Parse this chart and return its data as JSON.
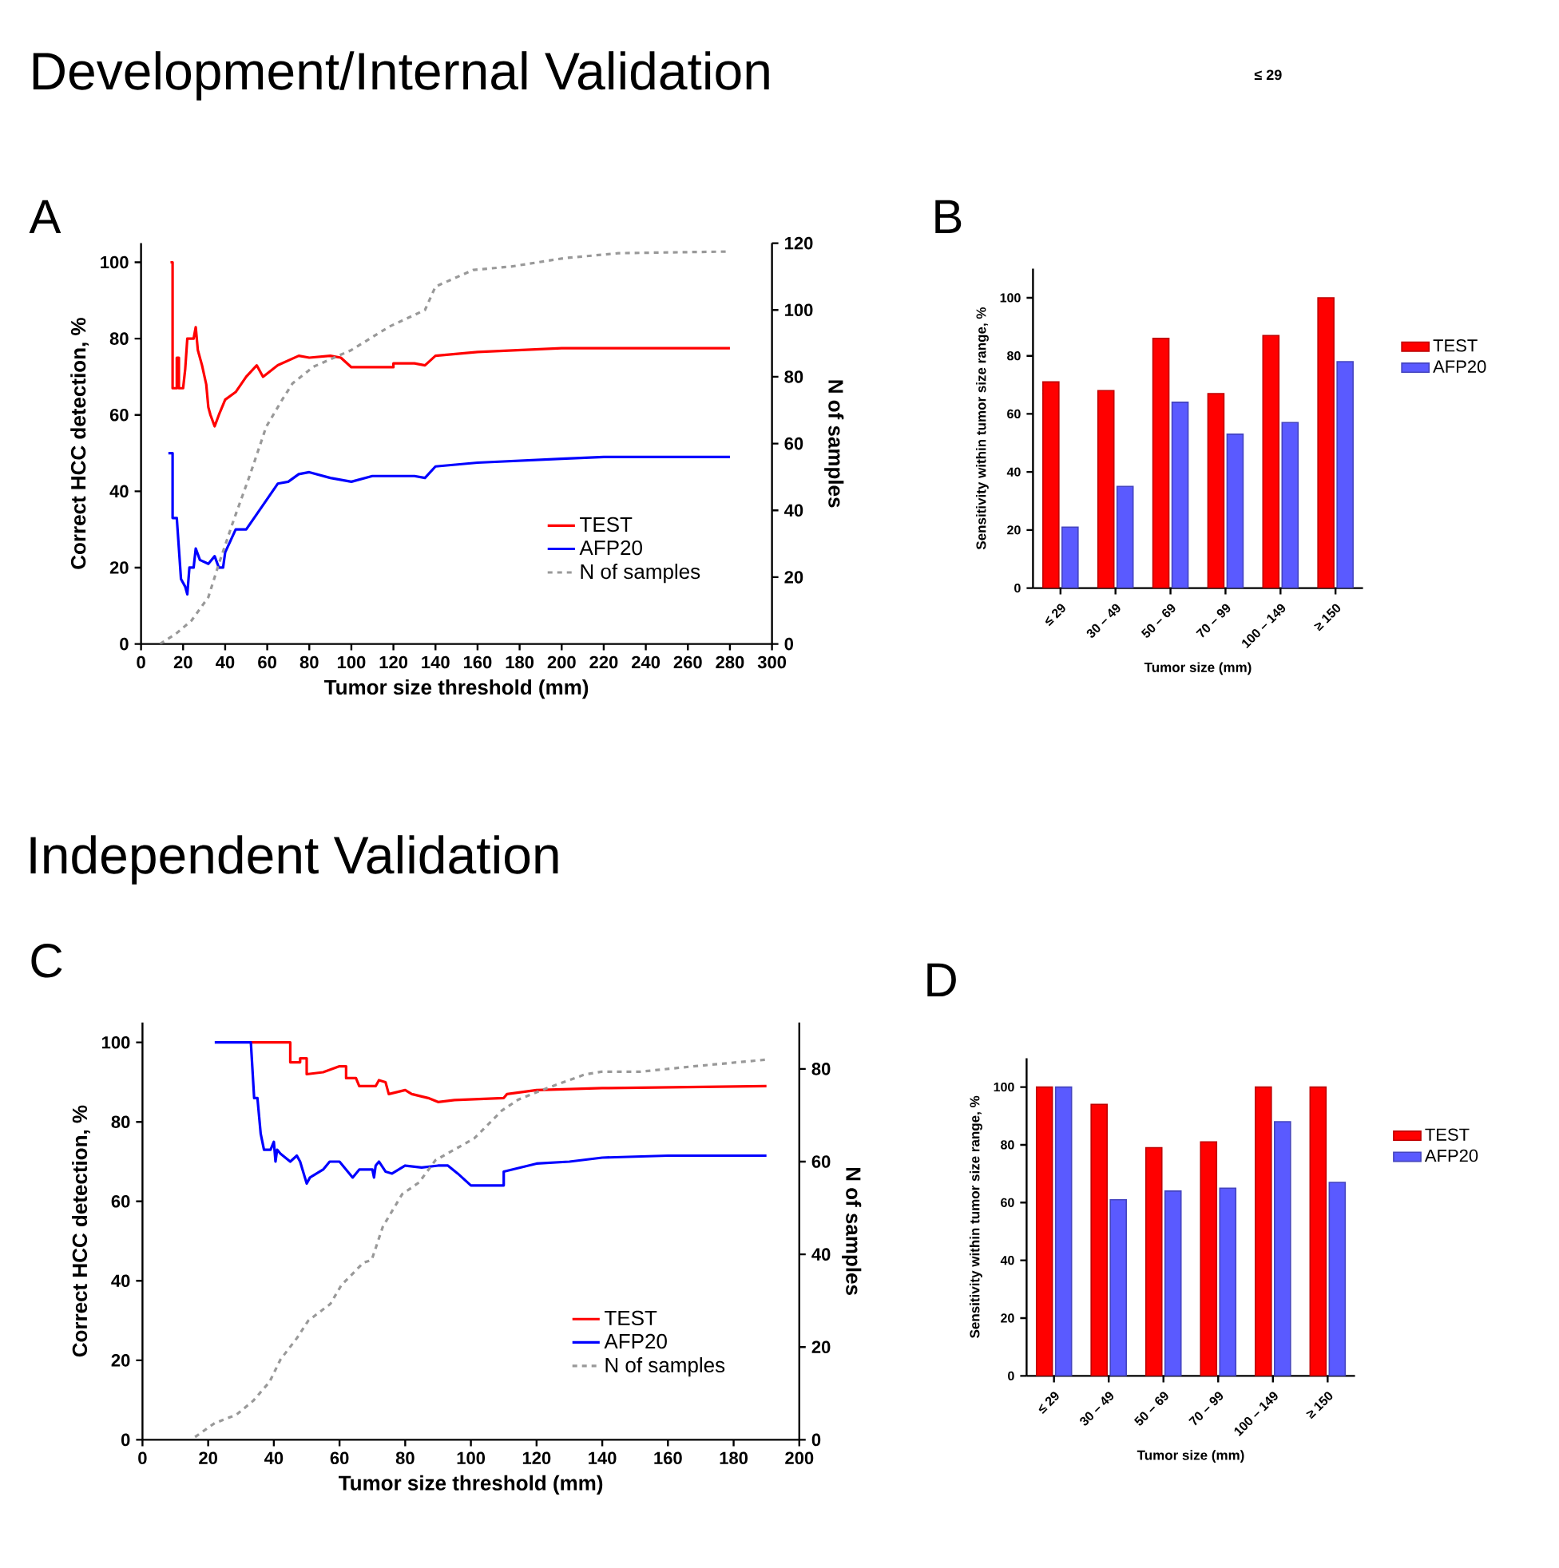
{
  "chart_data": [
    {
      "type": "line",
      "title": "Development/Internal Validation",
      "subtitle": "A",
      "xlabel": "Tumor size threshold (mm)",
      "ylabel": "Correct HCC detection, %",
      "y2label": "N of samples",
      "xlim": [
        0,
        300
      ],
      "xticks": [
        0,
        20,
        40,
        60,
        80,
        100,
        120,
        140,
        160,
        180,
        200,
        220,
        240,
        260,
        280,
        300
      ],
      "ylim": [
        0,
        105
      ],
      "yticks": [
        0,
        20,
        40,
        60,
        80,
        100
      ],
      "y2lim": [
        0,
        120
      ],
      "y2ticks": [
        0,
        20,
        40,
        60,
        80,
        100,
        120
      ],
      "legend": "bottom right",
      "series": [
        {
          "name": "TEST",
          "color": "#ff0000",
          "x": [
            14,
            15,
            15,
            17,
            17,
            18,
            18,
            20,
            21,
            22,
            25,
            26,
            27,
            29,
            31,
            32,
            33,
            35,
            37,
            40,
            45,
            50,
            55,
            58,
            65,
            75,
            80,
            90,
            95,
            100,
            120,
            120,
            130,
            135,
            140,
            160,
            200,
            280
          ],
          "values": [
            100,
            100,
            67,
            67,
            75,
            75,
            67,
            67,
            72,
            80,
            80,
            83,
            77,
            73,
            68,
            62,
            60,
            57,
            60,
            64,
            66,
            70,
            73,
            70,
            73,
            75.5,
            75,
            75.5,
            75,
            72.5,
            72.5,
            73.5,
            73.5,
            73,
            75.5,
            76.5,
            77.5,
            77.5
          ]
        },
        {
          "name": "AFP20",
          "color": "#0000ff",
          "x": [
            13,
            15,
            15,
            17,
            18,
            19,
            21,
            22,
            23,
            25,
            26,
            28,
            32,
            35,
            37,
            39,
            40,
            45,
            50,
            55,
            60,
            65,
            70,
            75,
            80,
            90,
            100,
            110,
            130,
            135,
            140,
            160,
            200,
            220,
            280
          ],
          "values": [
            50,
            50,
            33,
            33,
            25,
            17,
            15,
            13,
            20,
            20,
            25,
            22,
            21,
            23,
            20,
            20,
            24,
            30,
            30,
            34,
            38,
            42,
            42.5,
            44.5,
            45,
            43.5,
            42.5,
            44,
            44,
            43.5,
            46.5,
            47.5,
            48.5,
            49,
            49
          ]
        },
        {
          "name": "N of samples",
          "color": "#999999",
          "line_style": "dashed",
          "axis": "y2",
          "x": [
            9,
            16.5,
            24,
            32,
            37,
            44,
            52,
            59.5,
            67,
            72,
            82,
            100,
            118,
            135,
            140,
            158,
            176,
            201,
            227,
            278.5
          ],
          "values": [
            0,
            3,
            7,
            14,
            24,
            37,
            51,
            65,
            73,
            78,
            83,
            88,
            95,
            100,
            107,
            112,
            113,
            115.5,
            117,
            117.5
          ]
        }
      ]
    },
    {
      "type": "bar",
      "title": "B",
      "annotations": [
        "≤ 29"
      ],
      "xlabel": "Tumor size (mm)",
      "ylabel": "Sensitivity within tumor size range, %",
      "categories": [
        "≤ 29",
        "30 – 49",
        "50 – 69",
        "70 – 99",
        "100 – 149",
        "≥ 150"
      ],
      "ylim": [
        0,
        110
      ],
      "yticks": [
        0,
        20,
        40,
        60,
        80,
        100
      ],
      "legend": "right",
      "series": [
        {
          "name": "TEST",
          "color": "#ff0000",
          "values": [
            71,
            68,
            86,
            67,
            87,
            100
          ]
        },
        {
          "name": "AFP20",
          "color": "#5a5aff",
          "values": [
            21,
            35,
            64,
            53,
            57,
            78
          ]
        }
      ]
    },
    {
      "type": "line",
      "title": "Independent Validation",
      "subtitle": "C",
      "xlabel": "Tumor size threshold (mm)",
      "ylabel": "Correct HCC detection, %",
      "y2label": "N of samples",
      "xlim": [
        0,
        200
      ],
      "xticks": [
        0,
        20,
        40,
        60,
        80,
        100,
        120,
        140,
        160,
        180,
        200
      ],
      "ylim": [
        0,
        105
      ],
      "yticks": [
        0,
        20,
        40,
        60,
        80,
        100
      ],
      "y2lim": [
        0,
        90
      ],
      "y2ticks": [
        0,
        20,
        40,
        60,
        80
      ],
      "legend": "bottom right",
      "series": [
        {
          "name": "TEST",
          "color": "#ff0000",
          "x": [
            33,
            45,
            45,
            48,
            48,
            50,
            50,
            55,
            60,
            62,
            62,
            65,
            66,
            71,
            72,
            74,
            75,
            80,
            82,
            87,
            90,
            95,
            110,
            111,
            120,
            140,
            190
          ],
          "values": [
            100,
            100,
            95,
            95,
            96,
            96,
            92,
            92.5,
            94,
            94,
            91,
            91,
            89,
            89,
            90.5,
            90,
            87,
            88,
            87,
            86,
            85,
            85.5,
            86,
            87,
            88,
            88.5,
            89
          ]
        },
        {
          "name": "AFP20",
          "color": "#0000ff",
          "x": [
            22,
            33,
            34,
            35,
            36,
            37,
            39,
            40,
            40.5,
            41,
            42,
            45,
            47,
            48,
            50,
            51,
            55,
            57,
            60,
            62,
            64,
            66,
            70,
            70.5,
            71,
            72,
            74,
            76,
            80,
            85,
            90,
            93,
            96,
            100,
            110,
            110,
            115,
            120,
            130,
            140,
            160,
            190
          ],
          "values": [
            100,
            100,
            86,
            86,
            77,
            73,
            73,
            75,
            70,
            73,
            72,
            70,
            71.5,
            70,
            64.5,
            66,
            68,
            70,
            70,
            68,
            66,
            68,
            68,
            66,
            69,
            70,
            67.5,
            67,
            69,
            68.5,
            69,
            69,
            67,
            64,
            64,
            67.5,
            68.5,
            69.5,
            70,
            71,
            71.5,
            71.5
          ]
        },
        {
          "name": "N of samples",
          "color": "#999999",
          "line_style": "dashed",
          "axis": "y2",
          "x": [
            16,
            22,
            28.6,
            33.7,
            38.7,
            42,
            47.1,
            50.5,
            57.2,
            60.6,
            67.3,
            69.8,
            73.2,
            79.1,
            84.2,
            89.2,
            101,
            109.4,
            114.5,
            123,
            134.7,
            139.7,
            151.5,
            168.4,
            190
          ],
          "values": [
            0.6,
            3.6,
            5.4,
            8.4,
            12.5,
            17.3,
            22,
            25.7,
            29.3,
            33.4,
            38.2,
            38.8,
            46,
            53,
            55.5,
            60.3,
            65,
            71,
            73.4,
            75.8,
            78.8,
            79.4,
            79.4,
            80.6,
            82
          ]
        }
      ]
    },
    {
      "type": "bar",
      "title": "D",
      "xlabel": "Tumor size (mm)",
      "ylabel": "Sensitivity within tumor size range, %",
      "categories": [
        "≤ 29",
        "30 – 49",
        "50 – 69",
        "70 – 99",
        "100 – 149",
        "≥ 150"
      ],
      "ylim": [
        0,
        110
      ],
      "yticks": [
        0,
        20,
        40,
        60,
        80,
        100
      ],
      "legend": "right",
      "series": [
        {
          "name": "TEST",
          "color": "#ff0000",
          "values": [
            100,
            94,
            79,
            81,
            100,
            100
          ]
        },
        {
          "name": "AFP20",
          "color": "#5a5aff",
          "values": [
            100,
            61,
            64,
            65,
            88,
            67
          ]
        }
      ]
    }
  ]
}
